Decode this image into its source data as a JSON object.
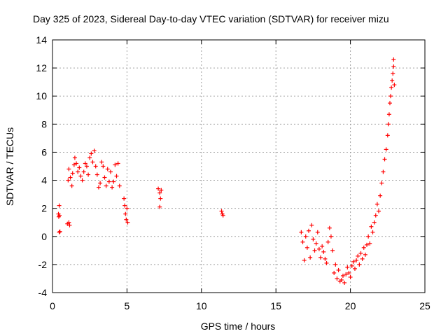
{
  "chart_data": {
    "type": "scatter",
    "title": "Day 325 of 2023, Sidereal Day-to-day VTEC variation (SDTVAR) for receiver mizu",
    "xlabel": "GPS time / hours",
    "ylabel": "SDTVAR / TECUs",
    "xlim": [
      0,
      25
    ],
    "ylim": [
      -4,
      14
    ],
    "xticks": [
      "0",
      "5",
      "10",
      "15",
      "20",
      "25"
    ],
    "yticks": [
      "-4",
      "-2",
      "0",
      "2",
      "4",
      "6",
      "8",
      "10",
      "12",
      "14"
    ],
    "grid": true,
    "marker": "+",
    "series": [
      {
        "name": "SDTVAR",
        "color": "#ff0000",
        "points": [
          [
            0.4,
            1.6
          ],
          [
            0.42,
            1.4
          ],
          [
            0.45,
            2.2
          ],
          [
            0.47,
            1.5
          ],
          [
            0.45,
            0.3
          ],
          [
            0.5,
            0.35
          ],
          [
            1.0,
            0.9
          ],
          [
            1.1,
            1.0
          ],
          [
            1.15,
            0.8
          ],
          [
            1.05,
            4.0
          ],
          [
            1.1,
            4.8
          ],
          [
            1.2,
            4.2
          ],
          [
            1.3,
            3.6
          ],
          [
            1.35,
            4.5
          ],
          [
            1.45,
            5.1
          ],
          [
            1.5,
            5.6
          ],
          [
            1.6,
            5.2
          ],
          [
            1.7,
            4.6
          ],
          [
            1.8,
            4.9
          ],
          [
            1.9,
            4.3
          ],
          [
            2.0,
            4.0
          ],
          [
            2.1,
            4.6
          ],
          [
            2.2,
            5.2
          ],
          [
            2.3,
            5.0
          ],
          [
            2.4,
            4.4
          ],
          [
            2.5,
            5.6
          ],
          [
            2.6,
            5.9
          ],
          [
            2.7,
            5.3
          ],
          [
            2.8,
            6.1
          ],
          [
            2.9,
            5.0
          ],
          [
            3.0,
            4.4
          ],
          [
            3.1,
            3.5
          ],
          [
            3.2,
            3.8
          ],
          [
            3.3,
            5.3
          ],
          [
            3.4,
            5.0
          ],
          [
            3.5,
            4.2
          ],
          [
            3.6,
            3.6
          ],
          [
            3.7,
            4.8
          ],
          [
            3.8,
            3.9
          ],
          [
            3.9,
            4.6
          ],
          [
            4.0,
            3.5
          ],
          [
            4.1,
            3.9
          ],
          [
            4.2,
            5.1
          ],
          [
            4.3,
            4.3
          ],
          [
            4.4,
            5.2
          ],
          [
            4.5,
            3.6
          ],
          [
            4.8,
            2.7
          ],
          [
            4.85,
            2.2
          ],
          [
            4.9,
            1.6
          ],
          [
            4.95,
            1.2
          ],
          [
            5.0,
            2.0
          ],
          [
            5.05,
            1.0
          ],
          [
            7.1,
            3.4
          ],
          [
            7.2,
            3.1
          ],
          [
            7.25,
            2.7
          ],
          [
            7.3,
            3.3
          ],
          [
            7.2,
            2.1
          ],
          [
            11.35,
            1.8
          ],
          [
            11.4,
            1.6
          ],
          [
            11.45,
            1.5
          ],
          [
            16.7,
            0.3
          ],
          [
            16.8,
            -0.4
          ],
          [
            16.9,
            -1.7
          ],
          [
            17.0,
            0.0
          ],
          [
            17.1,
            -0.8
          ],
          [
            17.2,
            0.4
          ],
          [
            17.3,
            -1.5
          ],
          [
            17.4,
            0.8
          ],
          [
            17.5,
            -0.2
          ],
          [
            17.6,
            -1.0
          ],
          [
            17.7,
            -0.5
          ],
          [
            17.8,
            0.3
          ],
          [
            17.9,
            -0.9
          ],
          [
            18.0,
            -1.5
          ],
          [
            18.1,
            -0.7
          ],
          [
            18.2,
            -1.1
          ],
          [
            18.3,
            -1.6
          ],
          [
            18.4,
            -1.9
          ],
          [
            18.5,
            -0.4
          ],
          [
            18.6,
            0.6
          ],
          [
            18.7,
            0.0
          ],
          [
            18.8,
            -1.0
          ],
          [
            18.9,
            -2.6
          ],
          [
            19.0,
            -2.0
          ],
          [
            19.1,
            -3.0
          ],
          [
            19.2,
            -2.4
          ],
          [
            19.3,
            -3.2
          ],
          [
            19.4,
            -3.1
          ],
          [
            19.5,
            -2.8
          ],
          [
            19.6,
            -3.3
          ],
          [
            19.7,
            -2.7
          ],
          [
            19.8,
            -2.2
          ],
          [
            19.9,
            -2.6
          ],
          [
            20.0,
            -2.9
          ],
          [
            20.1,
            -2.1
          ],
          [
            20.2,
            -1.8
          ],
          [
            20.3,
            -2.3
          ],
          [
            20.4,
            -1.7
          ],
          [
            20.5,
            -1.4
          ],
          [
            20.6,
            -2.0
          ],
          [
            20.7,
            -1.2
          ],
          [
            20.8,
            -1.6
          ],
          [
            20.9,
            -0.8
          ],
          [
            21.0,
            -1.3
          ],
          [
            21.1,
            -0.6
          ],
          [
            21.2,
            0.0
          ],
          [
            21.3,
            -0.5
          ],
          [
            21.4,
            0.7
          ],
          [
            21.5,
            0.3
          ],
          [
            21.6,
            1.0
          ],
          [
            21.7,
            1.5
          ],
          [
            21.8,
            2.3
          ],
          [
            21.9,
            1.8
          ],
          [
            22.0,
            2.9
          ],
          [
            22.1,
            3.8
          ],
          [
            22.2,
            4.6
          ],
          [
            22.3,
            5.5
          ],
          [
            22.4,
            6.2
          ],
          [
            22.5,
            7.2
          ],
          [
            22.55,
            8.0
          ],
          [
            22.6,
            8.7
          ],
          [
            22.65,
            9.5
          ],
          [
            22.7,
            10.0
          ],
          [
            22.75,
            10.6
          ],
          [
            22.8,
            11.1
          ],
          [
            22.85,
            11.6
          ],
          [
            22.9,
            12.1
          ],
          [
            22.9,
            12.6
          ],
          [
            22.95,
            10.8
          ]
        ]
      }
    ]
  }
}
